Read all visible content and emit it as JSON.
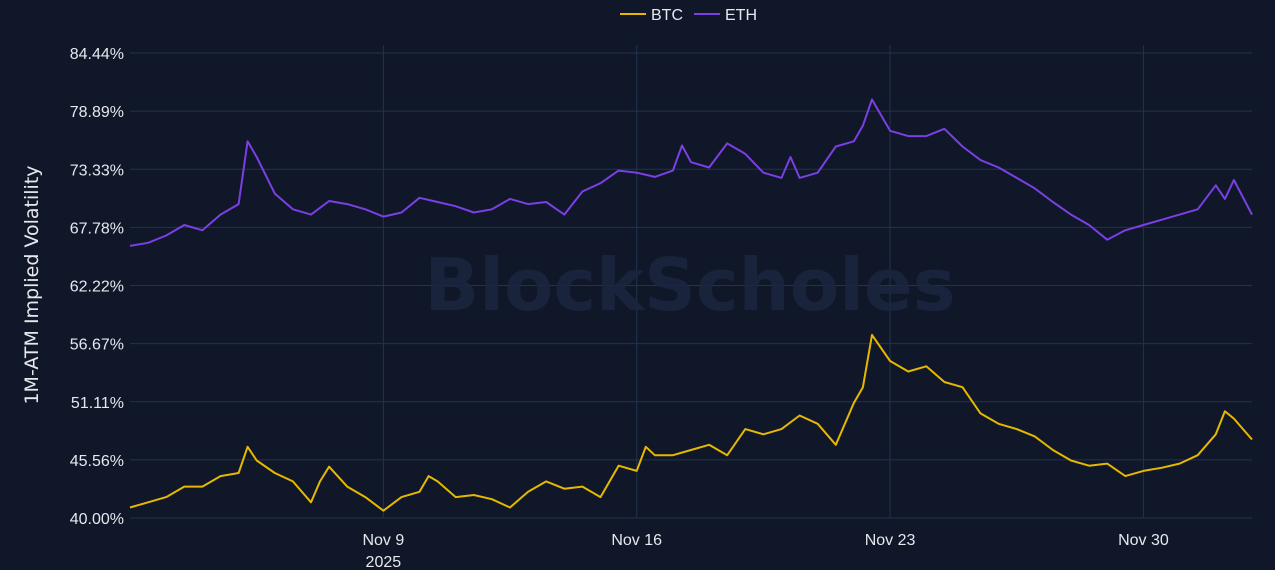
{
  "chart_data": {
    "type": "line",
    "title": "",
    "xlabel": "",
    "ylabel": "1M-ATM Implied Volatility",
    "watermark": "BlockScholes",
    "x_range": [
      "2025-11-02",
      "2025-12-03"
    ],
    "x_ticks": [
      {
        "date": "2025-11-09",
        "label": "Nov 9",
        "sublabel": "2025"
      },
      {
        "date": "2025-11-16",
        "label": "Nov 16",
        "sublabel": ""
      },
      {
        "date": "2025-11-23",
        "label": "Nov 23",
        "sublabel": ""
      },
      {
        "date": "2025-11-30",
        "label": "Nov 30",
        "sublabel": ""
      }
    ],
    "ylim": [
      40.0,
      84.44
    ],
    "y_ticks": [
      40.0,
      45.56,
      51.11,
      56.67,
      62.22,
      67.78,
      73.33,
      78.89,
      84.44
    ],
    "y_tick_labels": [
      "40.00%",
      "45.56%",
      "51.11%",
      "56.67%",
      "62.22%",
      "67.78%",
      "73.33%",
      "78.89%",
      "84.44%"
    ],
    "grid": true,
    "legend_position": "top-center",
    "series": [
      {
        "name": "BTC",
        "color": "#e6b800",
        "points": [
          [
            "2025-11-02",
            41.0
          ],
          [
            "2025-11-02T12:00",
            41.5
          ],
          [
            "2025-11-03",
            42.0
          ],
          [
            "2025-11-03T12:00",
            43.0
          ],
          [
            "2025-11-04",
            43.0
          ],
          [
            "2025-11-04T12:00",
            44.0
          ],
          [
            "2025-11-05",
            44.3
          ],
          [
            "2025-11-05T06:00",
            46.8
          ],
          [
            "2025-11-05T12:00",
            45.5
          ],
          [
            "2025-11-06",
            44.3
          ],
          [
            "2025-11-06T12:00",
            43.5
          ],
          [
            "2025-11-07",
            41.5
          ],
          [
            "2025-11-07T06:00",
            43.5
          ],
          [
            "2025-11-07T12:00",
            44.9
          ],
          [
            "2025-11-08",
            43.0
          ],
          [
            "2025-11-08T12:00",
            42.0
          ],
          [
            "2025-11-09",
            40.7
          ],
          [
            "2025-11-09T12:00",
            42.0
          ],
          [
            "2025-11-10",
            42.5
          ],
          [
            "2025-11-10T06:00",
            44.0
          ],
          [
            "2025-11-10T12:00",
            43.5
          ],
          [
            "2025-11-11",
            42.0
          ],
          [
            "2025-11-11T12:00",
            42.2
          ],
          [
            "2025-11-12",
            41.8
          ],
          [
            "2025-11-12T12:00",
            41.0
          ],
          [
            "2025-11-13",
            42.5
          ],
          [
            "2025-11-13T12:00",
            43.5
          ],
          [
            "2025-11-14",
            42.8
          ],
          [
            "2025-11-14T12:00",
            43.0
          ],
          [
            "2025-11-15",
            42.0
          ],
          [
            "2025-11-15T12:00",
            45.0
          ],
          [
            "2025-11-16",
            44.5
          ],
          [
            "2025-11-16T06:00",
            46.8
          ],
          [
            "2025-11-16T12:00",
            46.0
          ],
          [
            "2025-11-17",
            46.0
          ],
          [
            "2025-11-17T12:00",
            46.5
          ],
          [
            "2025-11-18",
            47.0
          ],
          [
            "2025-11-18T12:00",
            46.0
          ],
          [
            "2025-11-19",
            48.5
          ],
          [
            "2025-11-19T12:00",
            48.0
          ],
          [
            "2025-11-20",
            48.5
          ],
          [
            "2025-11-20T12:00",
            49.8
          ],
          [
            "2025-11-21",
            49.0
          ],
          [
            "2025-11-21T12:00",
            47.0
          ],
          [
            "2025-11-22",
            51.0
          ],
          [
            "2025-11-22T06:00",
            52.5
          ],
          [
            "2025-11-22T12:00",
            57.5
          ],
          [
            "2025-11-23",
            55.0
          ],
          [
            "2025-11-23T12:00",
            54.0
          ],
          [
            "2025-11-24",
            54.5
          ],
          [
            "2025-11-24T12:00",
            53.0
          ],
          [
            "2025-11-25",
            52.5
          ],
          [
            "2025-11-25T12:00",
            50.0
          ],
          [
            "2025-11-26",
            49.0
          ],
          [
            "2025-11-26T12:00",
            48.5
          ],
          [
            "2025-11-27",
            47.8
          ],
          [
            "2025-11-27T12:00",
            46.5
          ],
          [
            "2025-11-28",
            45.5
          ],
          [
            "2025-11-28T12:00",
            45.0
          ],
          [
            "2025-11-29",
            45.2
          ],
          [
            "2025-11-29T12:00",
            44.0
          ],
          [
            "2025-11-30",
            44.5
          ],
          [
            "2025-11-30T12:00",
            44.8
          ],
          [
            "2025-12-01",
            45.2
          ],
          [
            "2025-12-01T12:00",
            46.0
          ],
          [
            "2025-12-02",
            48.0
          ],
          [
            "2025-12-02T06:00",
            50.2
          ],
          [
            "2025-12-02T12:00",
            49.5
          ],
          [
            "2025-12-03",
            47.5
          ]
        ]
      },
      {
        "name": "ETH",
        "color": "#7b3fe4",
        "points": [
          [
            "2025-11-02",
            66.0
          ],
          [
            "2025-11-02T12:00",
            66.3
          ],
          [
            "2025-11-03",
            67.0
          ],
          [
            "2025-11-03T12:00",
            68.0
          ],
          [
            "2025-11-04",
            67.5
          ],
          [
            "2025-11-04T12:00",
            69.0
          ],
          [
            "2025-11-05",
            70.0
          ],
          [
            "2025-11-05T06:00",
            76.0
          ],
          [
            "2025-11-05T12:00",
            74.5
          ],
          [
            "2025-11-06",
            71.0
          ],
          [
            "2025-11-06T12:00",
            69.5
          ],
          [
            "2025-11-07",
            69.0
          ],
          [
            "2025-11-07T12:00",
            70.3
          ],
          [
            "2025-11-08",
            70.0
          ],
          [
            "2025-11-08T12:00",
            69.5
          ],
          [
            "2025-11-09",
            68.8
          ],
          [
            "2025-11-09T12:00",
            69.2
          ],
          [
            "2025-11-10",
            70.6
          ],
          [
            "2025-11-10T12:00",
            70.2
          ],
          [
            "2025-11-11",
            69.8
          ],
          [
            "2025-11-11T12:00",
            69.2
          ],
          [
            "2025-11-12",
            69.5
          ],
          [
            "2025-11-12T12:00",
            70.5
          ],
          [
            "2025-11-13",
            70.0
          ],
          [
            "2025-11-13T12:00",
            70.2
          ],
          [
            "2025-11-14",
            69.0
          ],
          [
            "2025-11-14T12:00",
            71.2
          ],
          [
            "2025-11-15",
            72.0
          ],
          [
            "2025-11-15T12:00",
            73.2
          ],
          [
            "2025-11-16",
            73.0
          ],
          [
            "2025-11-16T12:00",
            72.6
          ],
          [
            "2025-11-17",
            73.2
          ],
          [
            "2025-11-17T06:00",
            75.6
          ],
          [
            "2025-11-17T12:00",
            74.0
          ],
          [
            "2025-11-18",
            73.5
          ],
          [
            "2025-11-18T12:00",
            75.8
          ],
          [
            "2025-11-19",
            74.8
          ],
          [
            "2025-11-19T12:00",
            73.0
          ],
          [
            "2025-11-20",
            72.5
          ],
          [
            "2025-11-20T06:00",
            74.5
          ],
          [
            "2025-11-20T12:00",
            72.5
          ],
          [
            "2025-11-21",
            73.0
          ],
          [
            "2025-11-21T12:00",
            75.5
          ],
          [
            "2025-11-22",
            76.0
          ],
          [
            "2025-11-22T06:00",
            77.5
          ],
          [
            "2025-11-22T12:00",
            80.0
          ],
          [
            "2025-11-23",
            77.0
          ],
          [
            "2025-11-23T12:00",
            76.5
          ],
          [
            "2025-11-24",
            76.5
          ],
          [
            "2025-11-24T12:00",
            77.2
          ],
          [
            "2025-11-25",
            75.5
          ],
          [
            "2025-11-25T12:00",
            74.2
          ],
          [
            "2025-11-26",
            73.5
          ],
          [
            "2025-11-26T12:00",
            72.5
          ],
          [
            "2025-11-27",
            71.5
          ],
          [
            "2025-11-27T12:00",
            70.2
          ],
          [
            "2025-11-28",
            69.0
          ],
          [
            "2025-11-28T12:00",
            68.0
          ],
          [
            "2025-11-29",
            66.6
          ],
          [
            "2025-11-29T12:00",
            67.5
          ],
          [
            "2025-11-30",
            68.0
          ],
          [
            "2025-11-30T12:00",
            68.5
          ],
          [
            "2025-12-01",
            69.0
          ],
          [
            "2025-12-01T12:00",
            69.5
          ],
          [
            "2025-12-02",
            71.8
          ],
          [
            "2025-12-02T06:00",
            70.5
          ],
          [
            "2025-12-02T12:00",
            72.3
          ],
          [
            "2025-12-03",
            69.0
          ]
        ]
      }
    ]
  }
}
